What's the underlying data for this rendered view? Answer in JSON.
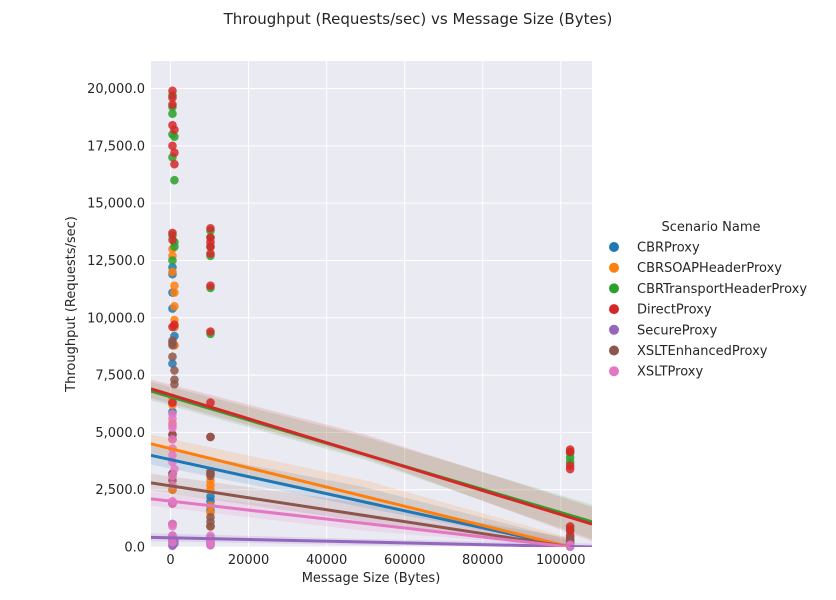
{
  "chart_data": {
    "type": "scatter",
    "title": "Throughput (Requests/sec) vs Message Size (Bytes)",
    "xlabel": "Message Size (Bytes)",
    "ylabel": "Throughput (Requests/sec)",
    "xlim": [
      -5000,
      108000
    ],
    "ylim": [
      0,
      21200
    ],
    "x_ticks": [
      {
        "value": 0,
        "label": "0"
      },
      {
        "value": 20000,
        "label": "20000"
      },
      {
        "value": 40000,
        "label": "40000"
      },
      {
        "value": 60000,
        "label": "60000"
      },
      {
        "value": 80000,
        "label": "80000"
      },
      {
        "value": 100000,
        "label": "100000"
      }
    ],
    "y_ticks": [
      {
        "value": 0,
        "label": "0.0"
      },
      {
        "value": 2500,
        "label": "2,500.0"
      },
      {
        "value": 5000,
        "label": "5,000.0"
      },
      {
        "value": 7500,
        "label": "7,500.0"
      },
      {
        "value": 10000,
        "label": "10,000.0"
      },
      {
        "value": 12500,
        "label": "12,500.0"
      },
      {
        "value": 15000,
        "label": "15,000.0"
      },
      {
        "value": 17500,
        "label": "17,500.0"
      },
      {
        "value": 20000,
        "label": "20,000.0"
      }
    ],
    "grid": true,
    "legend_title": "Scenario Name",
    "legend_position": "right",
    "series": [
      {
        "name": "CBRProxy",
        "color": "#1f77b4",
        "regression": {
          "y_at_xmin": 4000,
          "y_at_xmax": 0,
          "x_end": 102400
        },
        "band": [
          [
            -5000,
            3600,
            4400
          ],
          [
            50000,
            1700,
            2600
          ],
          [
            102400,
            -300,
            300
          ]
        ],
        "points": [
          [
            500,
            12200
          ],
          [
            500,
            11900
          ],
          [
            500,
            11100
          ],
          [
            500,
            10400
          ],
          [
            1000,
            9600
          ],
          [
            1000,
            9200
          ],
          [
            1000,
            8800
          ],
          [
            500,
            8000
          ],
          [
            500,
            6300
          ],
          [
            500,
            5900
          ],
          [
            500,
            4700
          ],
          [
            500,
            3200
          ],
          [
            500,
            2500
          ],
          [
            500,
            1900
          ],
          [
            500,
            1000
          ],
          [
            10240,
            2200
          ],
          [
            10240,
            2000
          ],
          [
            10240,
            1800
          ],
          [
            10240,
            1600
          ],
          [
            10240,
            900
          ],
          [
            10240,
            400
          ],
          [
            10240,
            200
          ],
          [
            102400,
            300
          ],
          [
            102400,
            150
          ],
          [
            102400,
            80
          ]
        ]
      },
      {
        "name": "CBRSOAPHeaderProxy",
        "color": "#ff7f0e",
        "regression": {
          "y_at_xmin": 4500,
          "y_at_xmax": 0,
          "x_end": 102400
        },
        "band": [
          [
            -5000,
            4100,
            4900
          ],
          [
            50000,
            2000,
            2900
          ],
          [
            102400,
            -200,
            400
          ]
        ],
        "points": [
          [
            500,
            13000
          ],
          [
            500,
            12700
          ],
          [
            500,
            12000
          ],
          [
            1000,
            11400
          ],
          [
            1000,
            11100
          ],
          [
            1000,
            10500
          ],
          [
            1000,
            9900
          ],
          [
            1000,
            9600
          ],
          [
            1000,
            8800
          ],
          [
            500,
            6500
          ],
          [
            500,
            6200
          ],
          [
            500,
            5400
          ],
          [
            500,
            4700
          ],
          [
            500,
            3100
          ],
          [
            500,
            2500
          ],
          [
            500,
            1900
          ],
          [
            10240,
            3200
          ],
          [
            10240,
            2900
          ],
          [
            10240,
            2700
          ],
          [
            10240,
            2500
          ],
          [
            10240,
            1800
          ],
          [
            10240,
            1500
          ],
          [
            10240,
            900
          ],
          [
            102400,
            400
          ],
          [
            102400,
            200
          ],
          [
            102400,
            100
          ]
        ]
      },
      {
        "name": "CBRTransportHeaderProxy",
        "color": "#2ca02c",
        "regression": {
          "y_at_xmin": 6800,
          "y_at_xmax": 1100,
          "x_end": 108000
        },
        "band": [
          [
            -5000,
            6400,
            7200
          ],
          [
            50000,
            3800,
            4800
          ],
          [
            108000,
            350,
            1850
          ]
        ],
        "points": [
          [
            500,
            19700
          ],
          [
            500,
            19200
          ],
          [
            500,
            18900
          ],
          [
            500,
            18000
          ],
          [
            1000,
            17900
          ],
          [
            500,
            17000
          ],
          [
            1000,
            16000
          ],
          [
            500,
            13600
          ],
          [
            1000,
            13300
          ],
          [
            1000,
            13100
          ],
          [
            500,
            12500
          ],
          [
            10240,
            13800
          ],
          [
            10240,
            13500
          ],
          [
            10240,
            13100
          ],
          [
            10240,
            12700
          ],
          [
            10240,
            11300
          ],
          [
            10240,
            9300
          ],
          [
            102400,
            4100
          ],
          [
            102400,
            3900
          ],
          [
            102400,
            3700
          ],
          [
            102400,
            800
          ]
        ]
      },
      {
        "name": "DirectProxy",
        "color": "#d62728",
        "regression": {
          "y_at_xmin": 6900,
          "y_at_xmax": 1000,
          "x_end": 108000
        },
        "band": [
          [
            -5000,
            6500,
            7300
          ],
          [
            50000,
            3900,
            4900
          ],
          [
            108000,
            250,
            1750
          ]
        ],
        "points": [
          [
            500,
            19900
          ],
          [
            500,
            19600
          ],
          [
            500,
            19300
          ],
          [
            500,
            18400
          ],
          [
            1000,
            18200
          ],
          [
            500,
            17500
          ],
          [
            1000,
            17200
          ],
          [
            1000,
            16700
          ],
          [
            500,
            13700
          ],
          [
            500,
            13400
          ],
          [
            1000,
            9700
          ],
          [
            500,
            9600
          ],
          [
            500,
            6300
          ],
          [
            500,
            4900
          ],
          [
            10240,
            13900
          ],
          [
            10240,
            13500
          ],
          [
            10240,
            13300
          ],
          [
            10240,
            13100
          ],
          [
            10240,
            12800
          ],
          [
            10240,
            11400
          ],
          [
            10240,
            9400
          ],
          [
            10240,
            6300
          ],
          [
            10240,
            4800
          ],
          [
            10240,
            3200
          ],
          [
            102400,
            4250
          ],
          [
            102400,
            4150
          ],
          [
            102400,
            3550
          ],
          [
            102400,
            3400
          ],
          [
            102400,
            900
          ],
          [
            102400,
            700
          ],
          [
            102400,
            500
          ]
        ]
      },
      {
        "name": "SecureProxy",
        "color": "#9467bd",
        "regression": {
          "y_at_xmin": 420,
          "y_at_xmax": 0,
          "x_end": 108000
        },
        "band": [
          [
            -5000,
            250,
            600
          ],
          [
            50000,
            80,
            350
          ],
          [
            108000,
            -100,
            150
          ]
        ],
        "points": [
          [
            500,
            500
          ],
          [
            500,
            400
          ],
          [
            500,
            300
          ],
          [
            500,
            200
          ],
          [
            500,
            100
          ],
          [
            500,
            50
          ],
          [
            1000,
            300
          ],
          [
            1000,
            150
          ],
          [
            10240,
            300
          ],
          [
            10240,
            150
          ],
          [
            10240,
            80
          ],
          [
            102400,
            60
          ],
          [
            102400,
            30
          ],
          [
            102400,
            20
          ]
        ]
      },
      {
        "name": "XSLTEnhancedProxy",
        "color": "#8c564b",
        "regression": {
          "y_at_xmin": 2800,
          "y_at_xmax": 0,
          "x_end": 102400
        },
        "band": [
          [
            -5000,
            2450,
            3200
          ],
          [
            50000,
            1100,
            1900
          ],
          [
            102400,
            -300,
            400
          ]
        ],
        "points": [
          [
            500,
            9000
          ],
          [
            500,
            8900
          ],
          [
            500,
            8800
          ],
          [
            500,
            8300
          ],
          [
            1000,
            7700
          ],
          [
            1000,
            7300
          ],
          [
            1000,
            7100
          ],
          [
            500,
            4900
          ],
          [
            500,
            3200
          ],
          [
            500,
            2900
          ],
          [
            500,
            1900
          ],
          [
            500,
            1000
          ],
          [
            10240,
            4800
          ],
          [
            10240,
            3300
          ],
          [
            10240,
            3100
          ],
          [
            10240,
            1300
          ],
          [
            10240,
            1100
          ],
          [
            10240,
            900
          ],
          [
            102400,
            400
          ],
          [
            102400,
            250
          ],
          [
            102400,
            150
          ]
        ]
      },
      {
        "name": "XSLTProxy",
        "color": "#e377c2",
        "regression": {
          "y_at_xmin": 2100,
          "y_at_xmax": 0,
          "x_end": 102400
        },
        "band": [
          [
            -5000,
            1800,
            2400
          ],
          [
            50000,
            700,
            1400
          ],
          [
            102400,
            -300,
            300
          ]
        ],
        "points": [
          [
            500,
            5800
          ],
          [
            500,
            5600
          ],
          [
            500,
            5300
          ],
          [
            500,
            5200
          ],
          [
            500,
            4700
          ],
          [
            500,
            4300
          ],
          [
            500,
            4000
          ],
          [
            500,
            3700
          ],
          [
            1000,
            3400
          ],
          [
            500,
            3100
          ],
          [
            500,
            2700
          ],
          [
            500,
            2000
          ],
          [
            500,
            1900
          ],
          [
            500,
            1000
          ],
          [
            500,
            900
          ],
          [
            500,
            500
          ],
          [
            500,
            200
          ],
          [
            10240,
            500
          ],
          [
            10240,
            300
          ],
          [
            10240,
            200
          ],
          [
            10240,
            100
          ],
          [
            102400,
            100
          ],
          [
            102400,
            50
          ]
        ]
      }
    ]
  }
}
